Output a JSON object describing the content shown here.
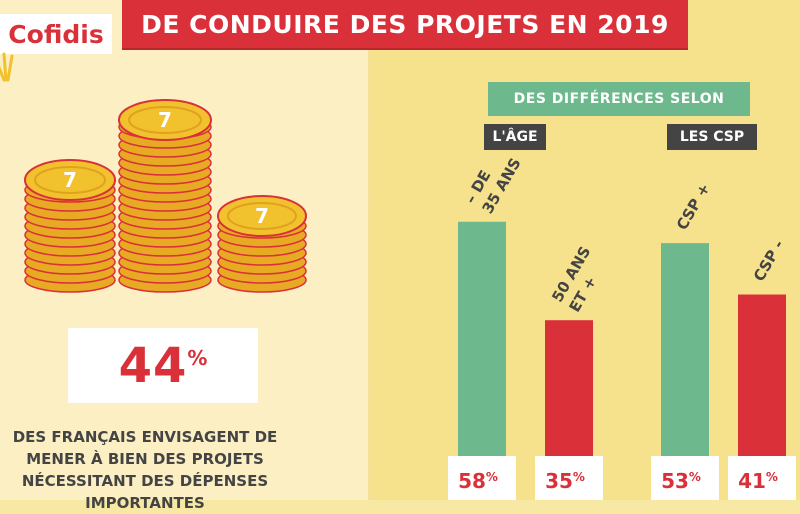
{
  "header": {
    "title": "DE CONDUIRE DES PROJETS EN 2019",
    "logo": "Cofidis"
  },
  "left": {
    "coin_symbol": "7",
    "percentage": "44",
    "percent_sign": "%",
    "description_lines": [
      "DES FRANÇAIS ENVISAGENT DE",
      "MENER À BIEN DES PROJETS",
      "NÉCESSITANT DES DÉPENSES",
      "IMPORTANTES"
    ]
  },
  "colors": {
    "red": "#d9303a",
    "green": "#6db88c",
    "gold": "#f2c12e",
    "cream": "#fbefc3",
    "yellow": "#f6e28c"
  },
  "chart_data": {
    "type": "bar",
    "title": "DES DIFFÉRENCES SELON",
    "groups": [
      "L'ÂGE",
      "LES CSP"
    ],
    "categories": [
      "- DE 35 ANS",
      "50 ANS ET +",
      "CSP +",
      "CSP -"
    ],
    "category_label_lines": [
      [
        "– DE",
        "35 ANS"
      ],
      [
        "50 ANS",
        "ET +"
      ],
      [
        "CSP +"
      ],
      [
        "CSP -"
      ]
    ],
    "values": [
      58,
      35,
      53,
      41
    ],
    "value_labels": [
      "58",
      "35",
      "53",
      "41"
    ],
    "unit": "%",
    "colors": [
      "#6db88c",
      "#d9303a",
      "#6db88c",
      "#d9303a"
    ],
    "ylim": [
      0,
      70
    ],
    "grid": false,
    "legend": "none"
  }
}
